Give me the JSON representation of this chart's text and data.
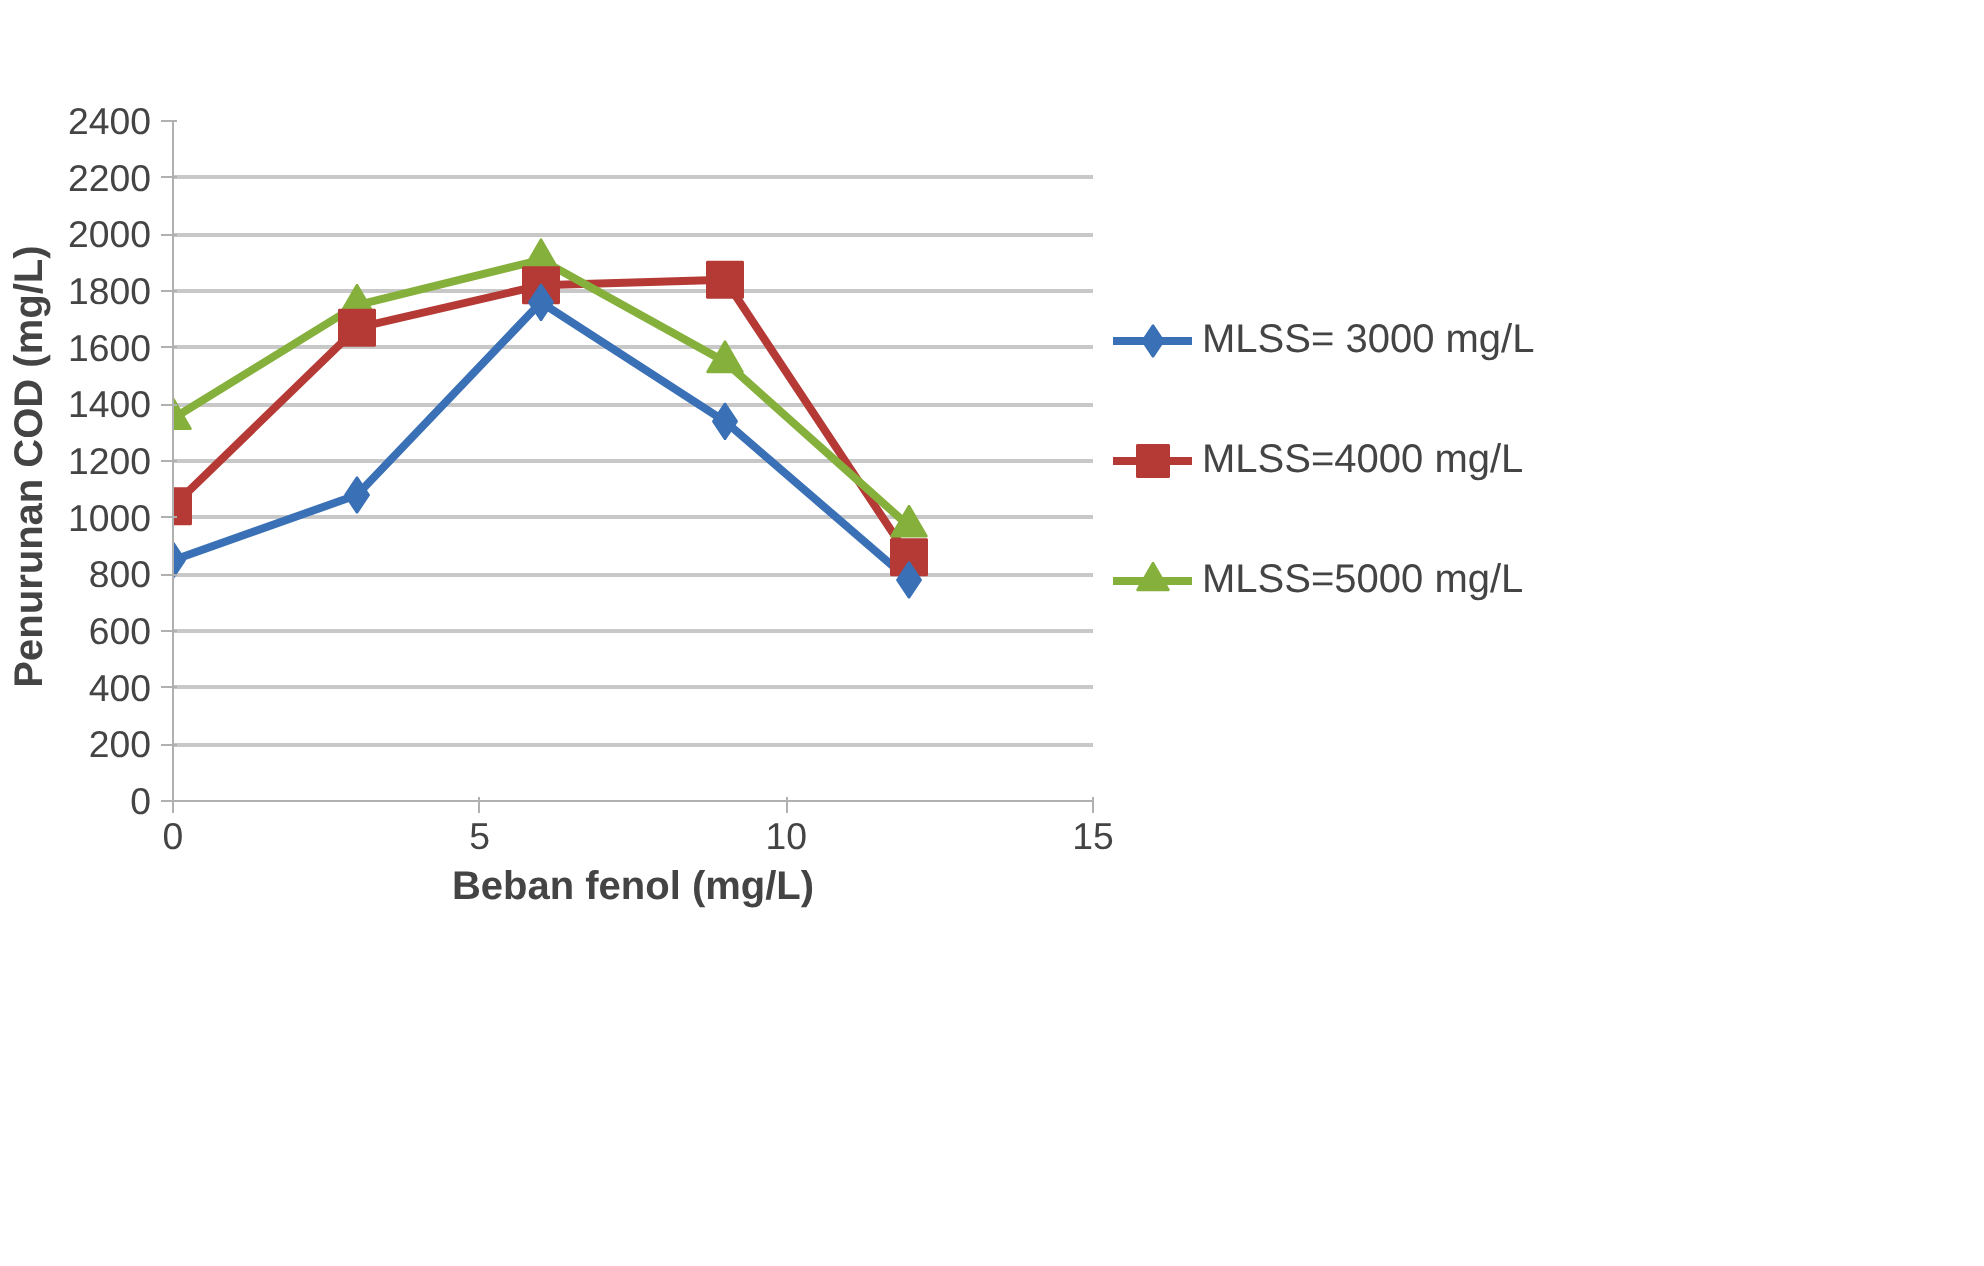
{
  "chart_data": {
    "type": "line",
    "xlabel": "Beban fenol (mg/L)",
    "ylabel": "Penurunan COD  (mg/L)",
    "x": [
      0,
      3,
      6,
      9,
      12
    ],
    "series": [
      {
        "name": "MLSS= 3000 mg/L",
        "color": "#3a70b5",
        "marker": "diamond",
        "values": [
          850,
          1080,
          1760,
          1340,
          780
        ]
      },
      {
        "name": "MLSS=4000 mg/L",
        "color": "#b53a36",
        "marker": "square",
        "values": [
          1040,
          1670,
          1820,
          1840,
          860
        ]
      },
      {
        "name": "MLSS=5000 mg/L",
        "color": "#86b03c",
        "marker": "triangle",
        "values": [
          1350,
          1750,
          1910,
          1550,
          970
        ]
      }
    ],
    "xlim": [
      0,
      15
    ],
    "xticks": [
      0,
      5,
      10,
      15
    ],
    "ylim": [
      0,
      2400
    ],
    "yticks": [
      0,
      200,
      400,
      600,
      800,
      1000,
      1200,
      1400,
      1600,
      1800,
      2000,
      2200,
      2400
    ],
    "grid": "y",
    "legend": "right",
    "line_style": "solid"
  }
}
